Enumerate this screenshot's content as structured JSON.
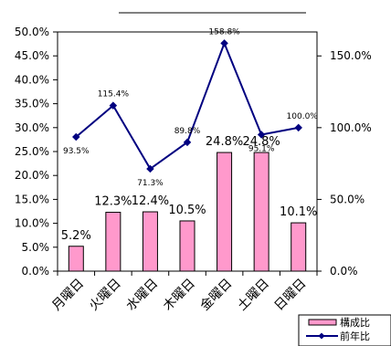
{
  "chart_data": {
    "type": "bar",
    "categories": [
      "月曜日",
      "火曜日",
      "水曜日",
      "木曜日",
      "金曜日",
      "土曜日",
      "日曜日"
    ],
    "series": [
      {
        "name": "構成比",
        "type": "bar",
        "axis": "left",
        "color": "#FF99CC",
        "values": [
          5.2,
          12.3,
          12.4,
          10.5,
          24.8,
          24.8,
          10.1
        ],
        "labels": [
          "5.2%",
          "12.3%",
          "12.4%",
          "10.5%",
          "24.8%",
          "24.8%",
          "10.1%"
        ]
      },
      {
        "name": "前年比",
        "type": "line",
        "axis": "right",
        "color": "#000080",
        "values": [
          93.5,
          115.4,
          71.3,
          89.8,
          158.8,
          95.1,
          100.0
        ],
        "labels": [
          "93.5%",
          "115.4%",
          "71.3%",
          "89.8%",
          "158.8%",
          "95.1%",
          "100.0%"
        ]
      }
    ],
    "y_left": {
      "lim": [
        0,
        50
      ],
      "ticks": [
        "0.0%",
        "5.0%",
        "10.0%",
        "15.0%",
        "20.0%",
        "25.0%",
        "30.0%",
        "35.0%",
        "40.0%",
        "45.0%",
        "50.0%"
      ],
      "tick_values": [
        0,
        5,
        10,
        15,
        20,
        25,
        30,
        35,
        40,
        45,
        50
      ]
    },
    "y_right": {
      "lim": [
        0,
        166.7
      ],
      "ticks": [
        "0.0%",
        "50.0%",
        "100.0%",
        "150.0%"
      ],
      "tick_values": [
        0,
        50,
        100,
        150
      ]
    },
    "grid": false,
    "legend": {
      "position": "bottom-right",
      "entries": [
        "構成比",
        "前年比"
      ]
    }
  }
}
